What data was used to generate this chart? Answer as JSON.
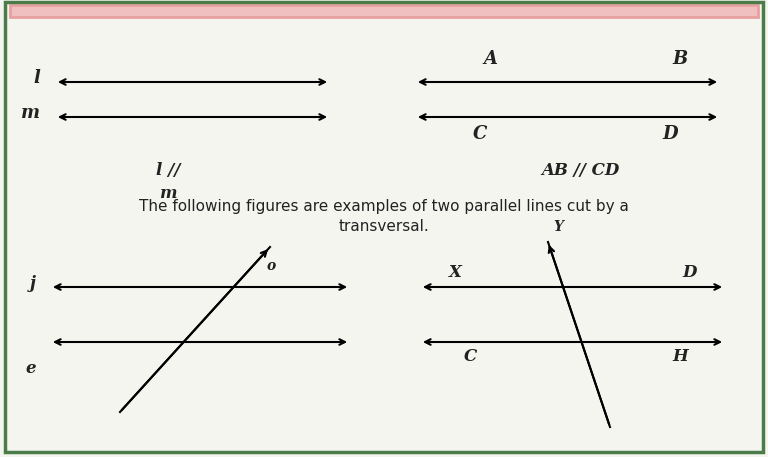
{
  "bg_color": "#f5f5f0",
  "border_color": "#c0392b",
  "text_color": "#222222",
  "top_border_color": "#e8a0a0",
  "fig_width": 7.68,
  "fig_height": 4.57,
  "line1_label": "l",
  "line2_label": "m",
  "parallel_note_left": "l //\nm",
  "lineAB_labelA": "A",
  "lineAB_labelB": "B",
  "lineCD_labelC": "C",
  "lineCD_labelD": "D",
  "parallel_note_right": "AB // CD",
  "desc_line1": "The following figures are examples of two parallel lines cut by a",
  "desc_line2": "transversal.",
  "left_fig_labels": {
    "j": "j",
    "e": "e",
    "o": "o"
  },
  "right_fig_labels": {
    "X": "X",
    "D": "D",
    "C": "C",
    "H": "H",
    "Y": "Y"
  }
}
